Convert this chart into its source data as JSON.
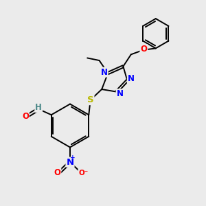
{
  "bg_color": "#ebebeb",
  "bond_color": "#000000",
  "N_color": "#0000ff",
  "O_color": "#ff0000",
  "S_color": "#b8b800",
  "H_color": "#4a8888",
  "font_size": 8.5,
  "bond_width": 1.4,
  "dbo": 0.06,
  "xlim": [
    0,
    10
  ],
  "ylim": [
    0,
    10
  ]
}
